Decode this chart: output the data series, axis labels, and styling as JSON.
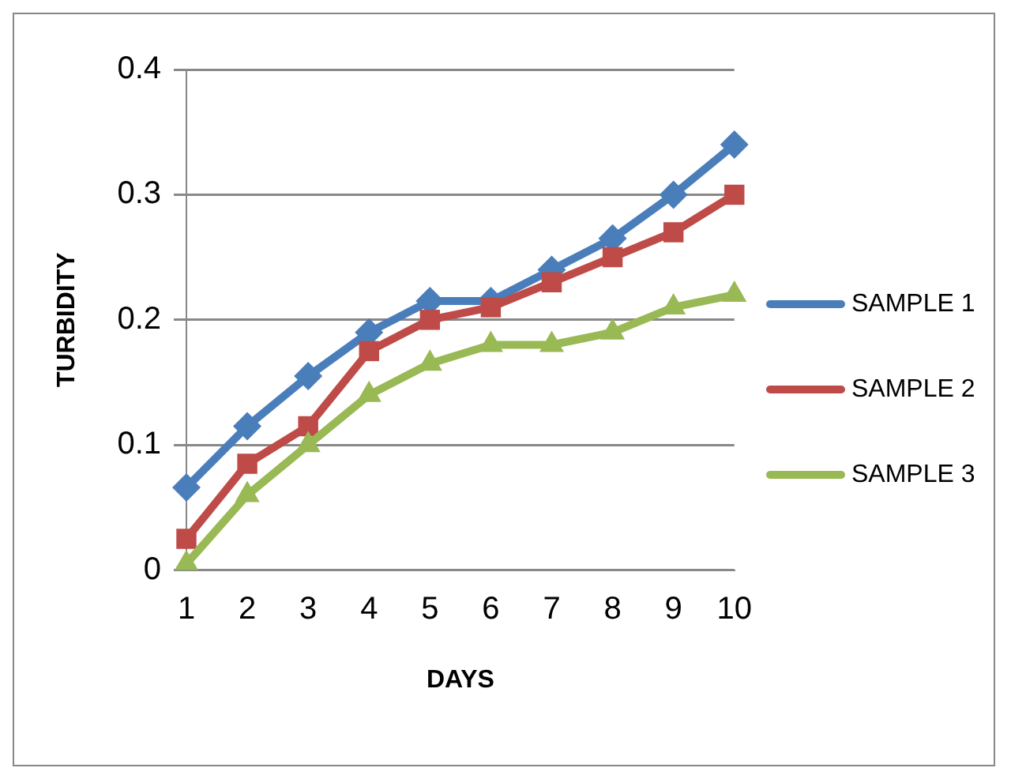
{
  "chart_data": {
    "type": "line",
    "xlabel": "DAYS",
    "ylabel": "TURBIDITY",
    "categories": [
      "1",
      "2",
      "3",
      "4",
      "5",
      "6",
      "7",
      "8",
      "9",
      "10"
    ],
    "series": [
      {
        "name": "SAMPLE 1",
        "color": "#4a7ebb",
        "marker": "diamond",
        "values": [
          0.066,
          0.115,
          0.155,
          0.19,
          0.215,
          0.215,
          0.24,
          0.265,
          0.3,
          0.34
        ]
      },
      {
        "name": "SAMPLE 2",
        "color": "#be4b48",
        "marker": "square",
        "values": [
          0.025,
          0.085,
          0.115,
          0.175,
          0.2,
          0.21,
          0.23,
          0.25,
          0.27,
          0.3
        ]
      },
      {
        "name": "SAMPLE 3",
        "color": "#98b954",
        "marker": "triangle",
        "values": [
          0.005,
          0.06,
          0.1,
          0.14,
          0.165,
          0.18,
          0.18,
          0.19,
          0.21,
          0.22
        ]
      }
    ],
    "ylim": [
      0,
      0.4
    ],
    "yticks": [
      0,
      0.1,
      0.2,
      0.3,
      0.4
    ],
    "grid": "y",
    "legend": "right"
  }
}
